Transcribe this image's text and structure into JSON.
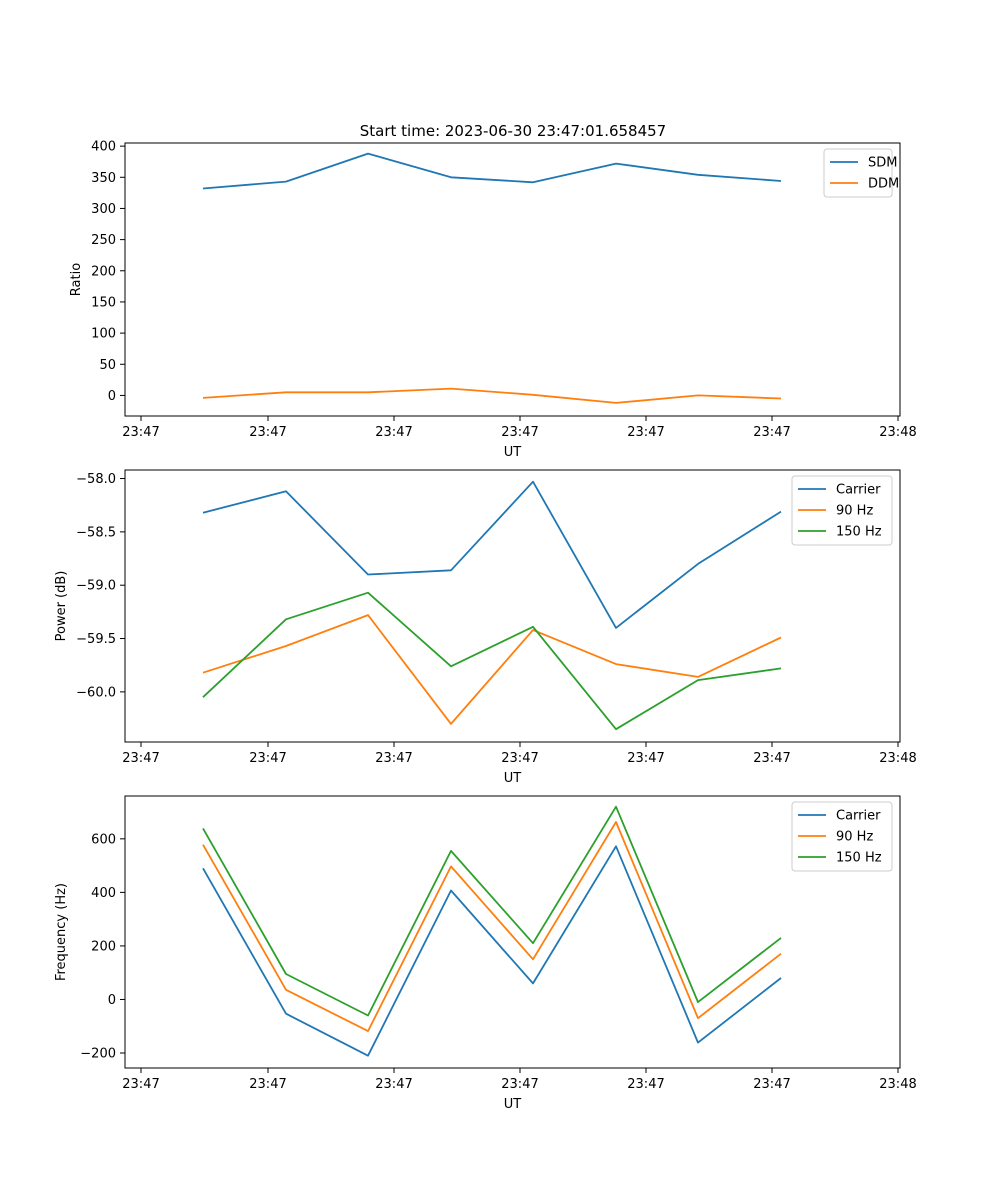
{
  "figure_title": "Start time: 2023-06-30 23:47:01.658457",
  "colors": {
    "c0": "#1f77b4",
    "c1": "#ff7f0e",
    "c2": "#2ca02c"
  },
  "chart_data": [
    {
      "type": "line",
      "title": "Start time: 2023-06-30 23:47:01.658457",
      "xlabel": "UT",
      "ylabel": "Ratio",
      "x_tick_labels": [
        "23:47",
        "23:47",
        "23:47",
        "23:47",
        "23:47",
        "23:47",
        "23:48"
      ],
      "yticks": [
        0,
        50,
        100,
        150,
        200,
        250,
        300,
        350,
        400
      ],
      "ylim": [
        -33,
        405
      ],
      "legend": "top-right",
      "series": [
        {
          "name": "SDM",
          "color": "#1f77b4",
          "values": [
            332,
            343,
            388,
            350,
            342,
            372,
            354,
            344
          ]
        },
        {
          "name": "DDM",
          "color": "#ff7f0e",
          "values": [
            -4,
            5,
            5,
            11,
            1,
            -12,
            0,
            -5
          ]
        }
      ]
    },
    {
      "type": "line",
      "xlabel": "UT",
      "ylabel": "Power (dB)",
      "x_tick_labels": [
        "23:47",
        "23:47",
        "23:47",
        "23:47",
        "23:47",
        "23:47",
        "23:48"
      ],
      "yticks": [
        -60.0,
        -59.5,
        -59.0,
        -58.5,
        -58.0
      ],
      "ytick_labels": [
        "−60.0",
        "−59.5",
        "−59.0",
        "−58.5",
        "−58.0"
      ],
      "ylim": [
        -60.47,
        -57.92
      ],
      "legend": "top-right",
      "series": [
        {
          "name": "Carrier",
          "color": "#1f77b4",
          "values": [
            -58.32,
            -58.12,
            -58.9,
            -58.86,
            -58.03,
            -59.4,
            -58.8,
            -58.31
          ]
        },
        {
          "name": "90 Hz",
          "color": "#ff7f0e",
          "values": [
            -59.82,
            -59.57,
            -59.28,
            -60.3,
            -59.42,
            -59.74,
            -59.86,
            -59.49
          ]
        },
        {
          "name": "150 Hz",
          "color": "#2ca02c",
          "values": [
            -60.05,
            -59.32,
            -59.07,
            -59.76,
            -59.39,
            -60.35,
            -59.89,
            -59.78
          ]
        }
      ]
    },
    {
      "type": "line",
      "xlabel": "UT",
      "ylabel": "Frequency (Hz)",
      "x_tick_labels": [
        "23:47",
        "23:47",
        "23:47",
        "23:47",
        "23:47",
        "23:47",
        "23:48"
      ],
      "yticks": [
        -200,
        0,
        200,
        400,
        600
      ],
      "ytick_labels": [
        "−200",
        "0",
        "200",
        "400",
        "600"
      ],
      "ylim": [
        -256,
        760
      ],
      "legend": "top-right",
      "series": [
        {
          "name": "Carrier",
          "color": "#1f77b4",
          "values": [
            490,
            -53,
            -210,
            407,
            60,
            572,
            -161,
            80
          ]
        },
        {
          "name": "90 Hz",
          "color": "#ff7f0e",
          "values": [
            578,
            36,
            -118,
            497,
            150,
            663,
            -70,
            171
          ]
        },
        {
          "name": "150 Hz",
          "color": "#2ca02c",
          "values": [
            639,
            95,
            -60,
            555,
            210,
            720,
            -10,
            230
          ]
        }
      ]
    }
  ]
}
